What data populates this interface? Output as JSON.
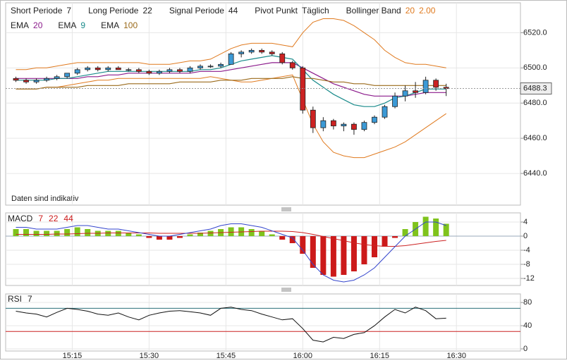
{
  "chart_data": [
    {
      "type": "candlestick",
      "settings": [
        {
          "label": "Short Periode",
          "value": 7
        },
        {
          "label": "Long Periode",
          "value": 22
        },
        {
          "label": "Signal Periode",
          "value": 44
        },
        {
          "label": "Pivot Punkt",
          "value": "Täglich"
        },
        {
          "label": "Bollinger Band",
          "value": 20,
          "extra": "2.00"
        }
      ],
      "annotation": "Daten sind indikativ",
      "x": [
        4,
        6,
        8,
        10,
        12,
        14,
        16,
        18,
        20,
        22,
        24,
        26,
        28,
        30,
        32,
        34,
        36,
        38,
        40,
        42,
        44,
        46,
        48,
        50,
        52,
        54,
        56,
        58,
        60,
        62,
        64,
        66,
        68,
        70,
        72,
        74,
        76,
        78,
        80,
        82,
        84,
        86,
        88
      ],
      "xlim": [
        2,
        102.5
      ],
      "xticks": [
        {
          "value": 15,
          "label": "15:15"
        },
        {
          "value": 30,
          "label": "15:30"
        },
        {
          "value": 45,
          "label": "15:45"
        },
        {
          "value": 60,
          "label": "16:00"
        },
        {
          "value": 75,
          "label": "16:15"
        },
        {
          "value": 90,
          "label": "16:30"
        }
      ],
      "ylim": [
        6422,
        6537
      ],
      "yticks": [
        {
          "value": 6440,
          "label": "6440.0"
        },
        {
          "value": 6460,
          "label": "6460.0"
        },
        {
          "value": 6480,
          "label": "6480.0"
        },
        {
          "value": 6500,
          "label": "6500.0"
        },
        {
          "value": 6520,
          "label": "6520.0"
        }
      ],
      "grid": true,
      "up_color": "#3c9ad6",
      "down_color": "#cc2222",
      "open": [
        6494,
        6493,
        6492,
        6493,
        6494,
        6495,
        6497,
        6499,
        6500,
        6499,
        6500,
        6499,
        6499,
        6498,
        6497,
        6498,
        6499,
        6498,
        6500,
        6501,
        6501,
        6502,
        6508,
        6509,
        6510,
        6509,
        6508,
        6503,
        6500,
        6476,
        6466,
        6470,
        6467,
        6468,
        6465,
        6469,
        6472,
        6478,
        6484,
        6487,
        6486,
        6493,
        6489
      ],
      "high": [
        6495,
        6494,
        6494,
        6495,
        6496,
        6497,
        6500,
        6501,
        6501,
        6501,
        6501,
        6500,
        6500,
        6499,
        6499,
        6500,
        6500,
        6501,
        6502,
        6502,
        6503,
        6509,
        6510,
        6511,
        6511,
        6510,
        6509,
        6504,
        6501,
        6478,
        6472,
        6471,
        6469,
        6469,
        6470,
        6473,
        6479,
        6486,
        6490,
        6492,
        6495,
        6494,
        6491
      ],
      "low": [
        6492,
        6491,
        6491,
        6492,
        6493,
        6494,
        6496,
        6498,
        6498,
        6498,
        6499,
        6498,
        6497,
        6496,
        6496,
        6497,
        6497,
        6497,
        6499,
        6500,
        6500,
        6502,
        6506,
        6508,
        6508,
        6507,
        6502,
        6499,
        6474,
        6463,
        6464,
        6465,
        6464,
        6462,
        6464,
        6468,
        6471,
        6477,
        6481,
        6483,
        6485,
        6487,
        6484
      ],
      "close": [
        6493,
        6492,
        6493,
        6494,
        6495,
        6497,
        6499,
        6500,
        6499,
        6500,
        6499,
        6499,
        6498,
        6497,
        6498,
        6499,
        6498,
        6500,
        6501,
        6501,
        6502,
        6508,
        6509,
        6510,
        6509,
        6508,
        6503,
        6500,
        6476,
        6466,
        6470,
        6467,
        6468,
        6465,
        6469,
        6472,
        6478,
        6484,
        6487,
        6486,
        6493,
        6489,
        6488.3
      ],
      "bollinger": {
        "color": "#e07a1f",
        "upper": [
          6499,
          6499,
          6500,
          6500,
          6501,
          6502,
          6503,
          6503,
          6503,
          6503,
          6503,
          6503,
          6503,
          6502,
          6502,
          6502,
          6503,
          6504,
          6504,
          6505,
          6508,
          6511,
          6513,
          6514,
          6514,
          6514,
          6513,
          6512,
          6520,
          6526,
          6528,
          6528,
          6527,
          6524,
          6520,
          6516,
          6510,
          6506,
          6503,
          6502,
          6502,
          6501,
          6500
        ],
        "lower": [
          6488,
          6488,
          6488,
          6489,
          6489,
          6490,
          6491,
          6492,
          6493,
          6493,
          6494,
          6494,
          6494,
          6494,
          6494,
          6494,
          6494,
          6494,
          6494,
          6495,
          6494,
          6493,
          6492,
          6492,
          6493,
          6494,
          6495,
          6496,
          6482,
          6468,
          6458,
          6452,
          6450,
          6449,
          6449,
          6451,
          6453,
          6455,
          6458,
          6462,
          6466,
          6470,
          6474
        ]
      },
      "series": [
        {
          "name": "EMA",
          "period": 20,
          "color": "#8b1a8b",
          "values": [
            6494,
            6494,
            6494,
            6494,
            6494,
            6494,
            6494,
            6495,
            6495,
            6496,
            6496,
            6497,
            6497,
            6497,
            6497,
            6497,
            6497,
            6497,
            6498,
            6498,
            6498,
            6499,
            6500,
            6501,
            6502,
            6503,
            6503,
            6503,
            6500,
            6497,
            6494,
            6491,
            6489,
            6487,
            6485,
            6484,
            6484,
            6484,
            6484,
            6485,
            6486,
            6486,
            6486
          ]
        },
        {
          "name": "EMA",
          "period": 9,
          "color": "#1a8b8b",
          "values": [
            6493,
            6493,
            6493,
            6493,
            6494,
            6494,
            6495,
            6496,
            6497,
            6498,
            6498,
            6498,
            6498,
            6498,
            6498,
            6498,
            6498,
            6498,
            6499,
            6499,
            6500,
            6502,
            6504,
            6505,
            6506,
            6507,
            6506,
            6505,
            6499,
            6493,
            6489,
            6485,
            6482,
            6479,
            6478,
            6478,
            6480,
            6483,
            6484,
            6486,
            6488,
            6488,
            6488
          ]
        },
        {
          "name": "EMA",
          "period": 100,
          "color": "#9a6a1a",
          "values": [
            6488,
            6488,
            6488,
            6489,
            6489,
            6489,
            6489,
            6490,
            6490,
            6490,
            6490,
            6491,
            6491,
            6491,
            6491,
            6491,
            6492,
            6492,
            6492,
            6492,
            6493,
            6493,
            6493,
            6494,
            6494,
            6494,
            6494,
            6495,
            6494,
            6494,
            6493,
            6492,
            6492,
            6491,
            6491,
            6490,
            6490,
            6490,
            6490,
            6490,
            6490,
            6490,
            6490
          ]
        }
      ]
    },
    {
      "type": "macd",
      "title": "MACD",
      "params": [
        7,
        22,
        44
      ],
      "ylim": [
        -14,
        6.6
      ],
      "yticks": [
        -12,
        -8,
        -4,
        0,
        4
      ],
      "pos_color": "#7fc31c",
      "neg_color": "#cc1a1a",
      "histogram": [
        2,
        2,
        1.5,
        1.5,
        1.5,
        2,
        2.5,
        2,
        1.5,
        1.5,
        1.5,
        1,
        0.5,
        -0.5,
        -1,
        -1,
        -0.5,
        0.5,
        1,
        1.5,
        2,
        2.5,
        2.5,
        2,
        1.5,
        0.5,
        -1,
        -2,
        -5,
        -9,
        -11,
        -11.5,
        -11,
        -10,
        -8,
        -6,
        -3,
        -0.5,
        2,
        4,
        5.5,
        5,
        3.5
      ],
      "macd": {
        "color": "#3344cc",
        "values": [
          2.5,
          2.5,
          2,
          2,
          2,
          2.5,
          3,
          3,
          2.5,
          2,
          2,
          1.5,
          1,
          0.5,
          0,
          0,
          0.5,
          1,
          1.5,
          2,
          3,
          3.5,
          3.5,
          3,
          2.5,
          1.5,
          0.5,
          -0.5,
          -4,
          -8,
          -11,
          -12.5,
          -13,
          -12.5,
          -11,
          -9,
          -6,
          -3,
          0,
          2,
          4,
          4,
          3
        ]
      },
      "signal": {
        "color": "#cc2222",
        "values": [
          0.5,
          0.5,
          0.5,
          0.5,
          0.6,
          0.6,
          0.7,
          0.8,
          0.8,
          0.9,
          0.9,
          0.9,
          0.9,
          0.9,
          0.8,
          0.8,
          0.8,
          0.8,
          0.8,
          0.9,
          1,
          1.1,
          1.2,
          1.3,
          1.4,
          1.4,
          1.4,
          1.3,
          1,
          0.5,
          -0.1,
          -0.7,
          -1.3,
          -1.9,
          -2.4,
          -2.7,
          -2.9,
          -2.9,
          -2.7,
          -2.3,
          -1.9,
          -1.5,
          -1.2
        ]
      }
    },
    {
      "type": "rsi",
      "title": "RSI",
      "params": [
        7
      ],
      "ylim": [
        -3.7,
        94.8
      ],
      "yticks": [
        0,
        40,
        80
      ],
      "levels": [
        {
          "value": 70,
          "color": "#2a6f7a"
        },
        {
          "value": 30,
          "color": "#cc2222"
        }
      ],
      "color": "#111111",
      "values": [
        65,
        62,
        60,
        55,
        63,
        70,
        68,
        65,
        60,
        58,
        62,
        55,
        50,
        58,
        62,
        65,
        66,
        64,
        62,
        58,
        70,
        72,
        68,
        66,
        60,
        55,
        50,
        52,
        35,
        15,
        12,
        20,
        18,
        25,
        28,
        40,
        55,
        68,
        62,
        72,
        66,
        52,
        53
      ]
    }
  ]
}
